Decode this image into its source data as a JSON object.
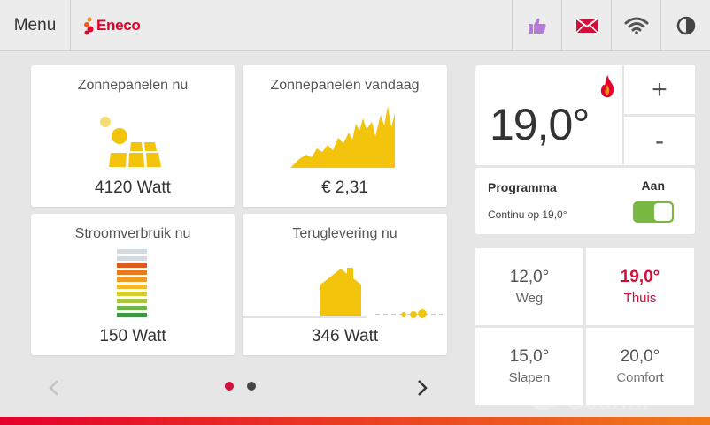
{
  "topbar": {
    "menu_label": "Menu",
    "brand": "Eneco",
    "icons": [
      "thumbs-up-icon",
      "mail-icon",
      "wifi-icon",
      "contrast-icon"
    ]
  },
  "tiles": {
    "solar_now": {
      "title": "Zonnepanelen nu",
      "value": "4120 Watt"
    },
    "solar_today": {
      "title": "Zonnepanelen vandaag",
      "value": "€ 2,31"
    },
    "consumption": {
      "title": "Stroomverbruik nu",
      "value": "150 Watt"
    },
    "feed_in": {
      "title": "Teruglevering nu",
      "value": "346 Watt"
    }
  },
  "thermostat": {
    "current_temp": "19,0°",
    "plus_label": "+",
    "minus_label": "-",
    "program_label": "Programma",
    "program_state": "Aan",
    "program_sub": "Continu op 19,0°",
    "toggle_on": true
  },
  "presets": [
    {
      "value": "12,0°",
      "label": "Weg",
      "active": false
    },
    {
      "value": "19,0°",
      "label": "Thuis",
      "active": true
    },
    {
      "value": "15,0°",
      "label": "Slapen",
      "active": false
    },
    {
      "value": "20,0°",
      "label": "Comfort",
      "active": false
    }
  ],
  "pager": {
    "current_page": 1,
    "total_pages": 2
  },
  "watermark": {
    "line1": "Gadget",
    "line2": "Gear.nl"
  },
  "colors": {
    "brand_red": "#e4002b",
    "accent_crimson": "#d0103a",
    "solar_yellow": "#f2c40c",
    "toggle_green": "#78b843",
    "thumb_purple": "#b57ad6"
  }
}
